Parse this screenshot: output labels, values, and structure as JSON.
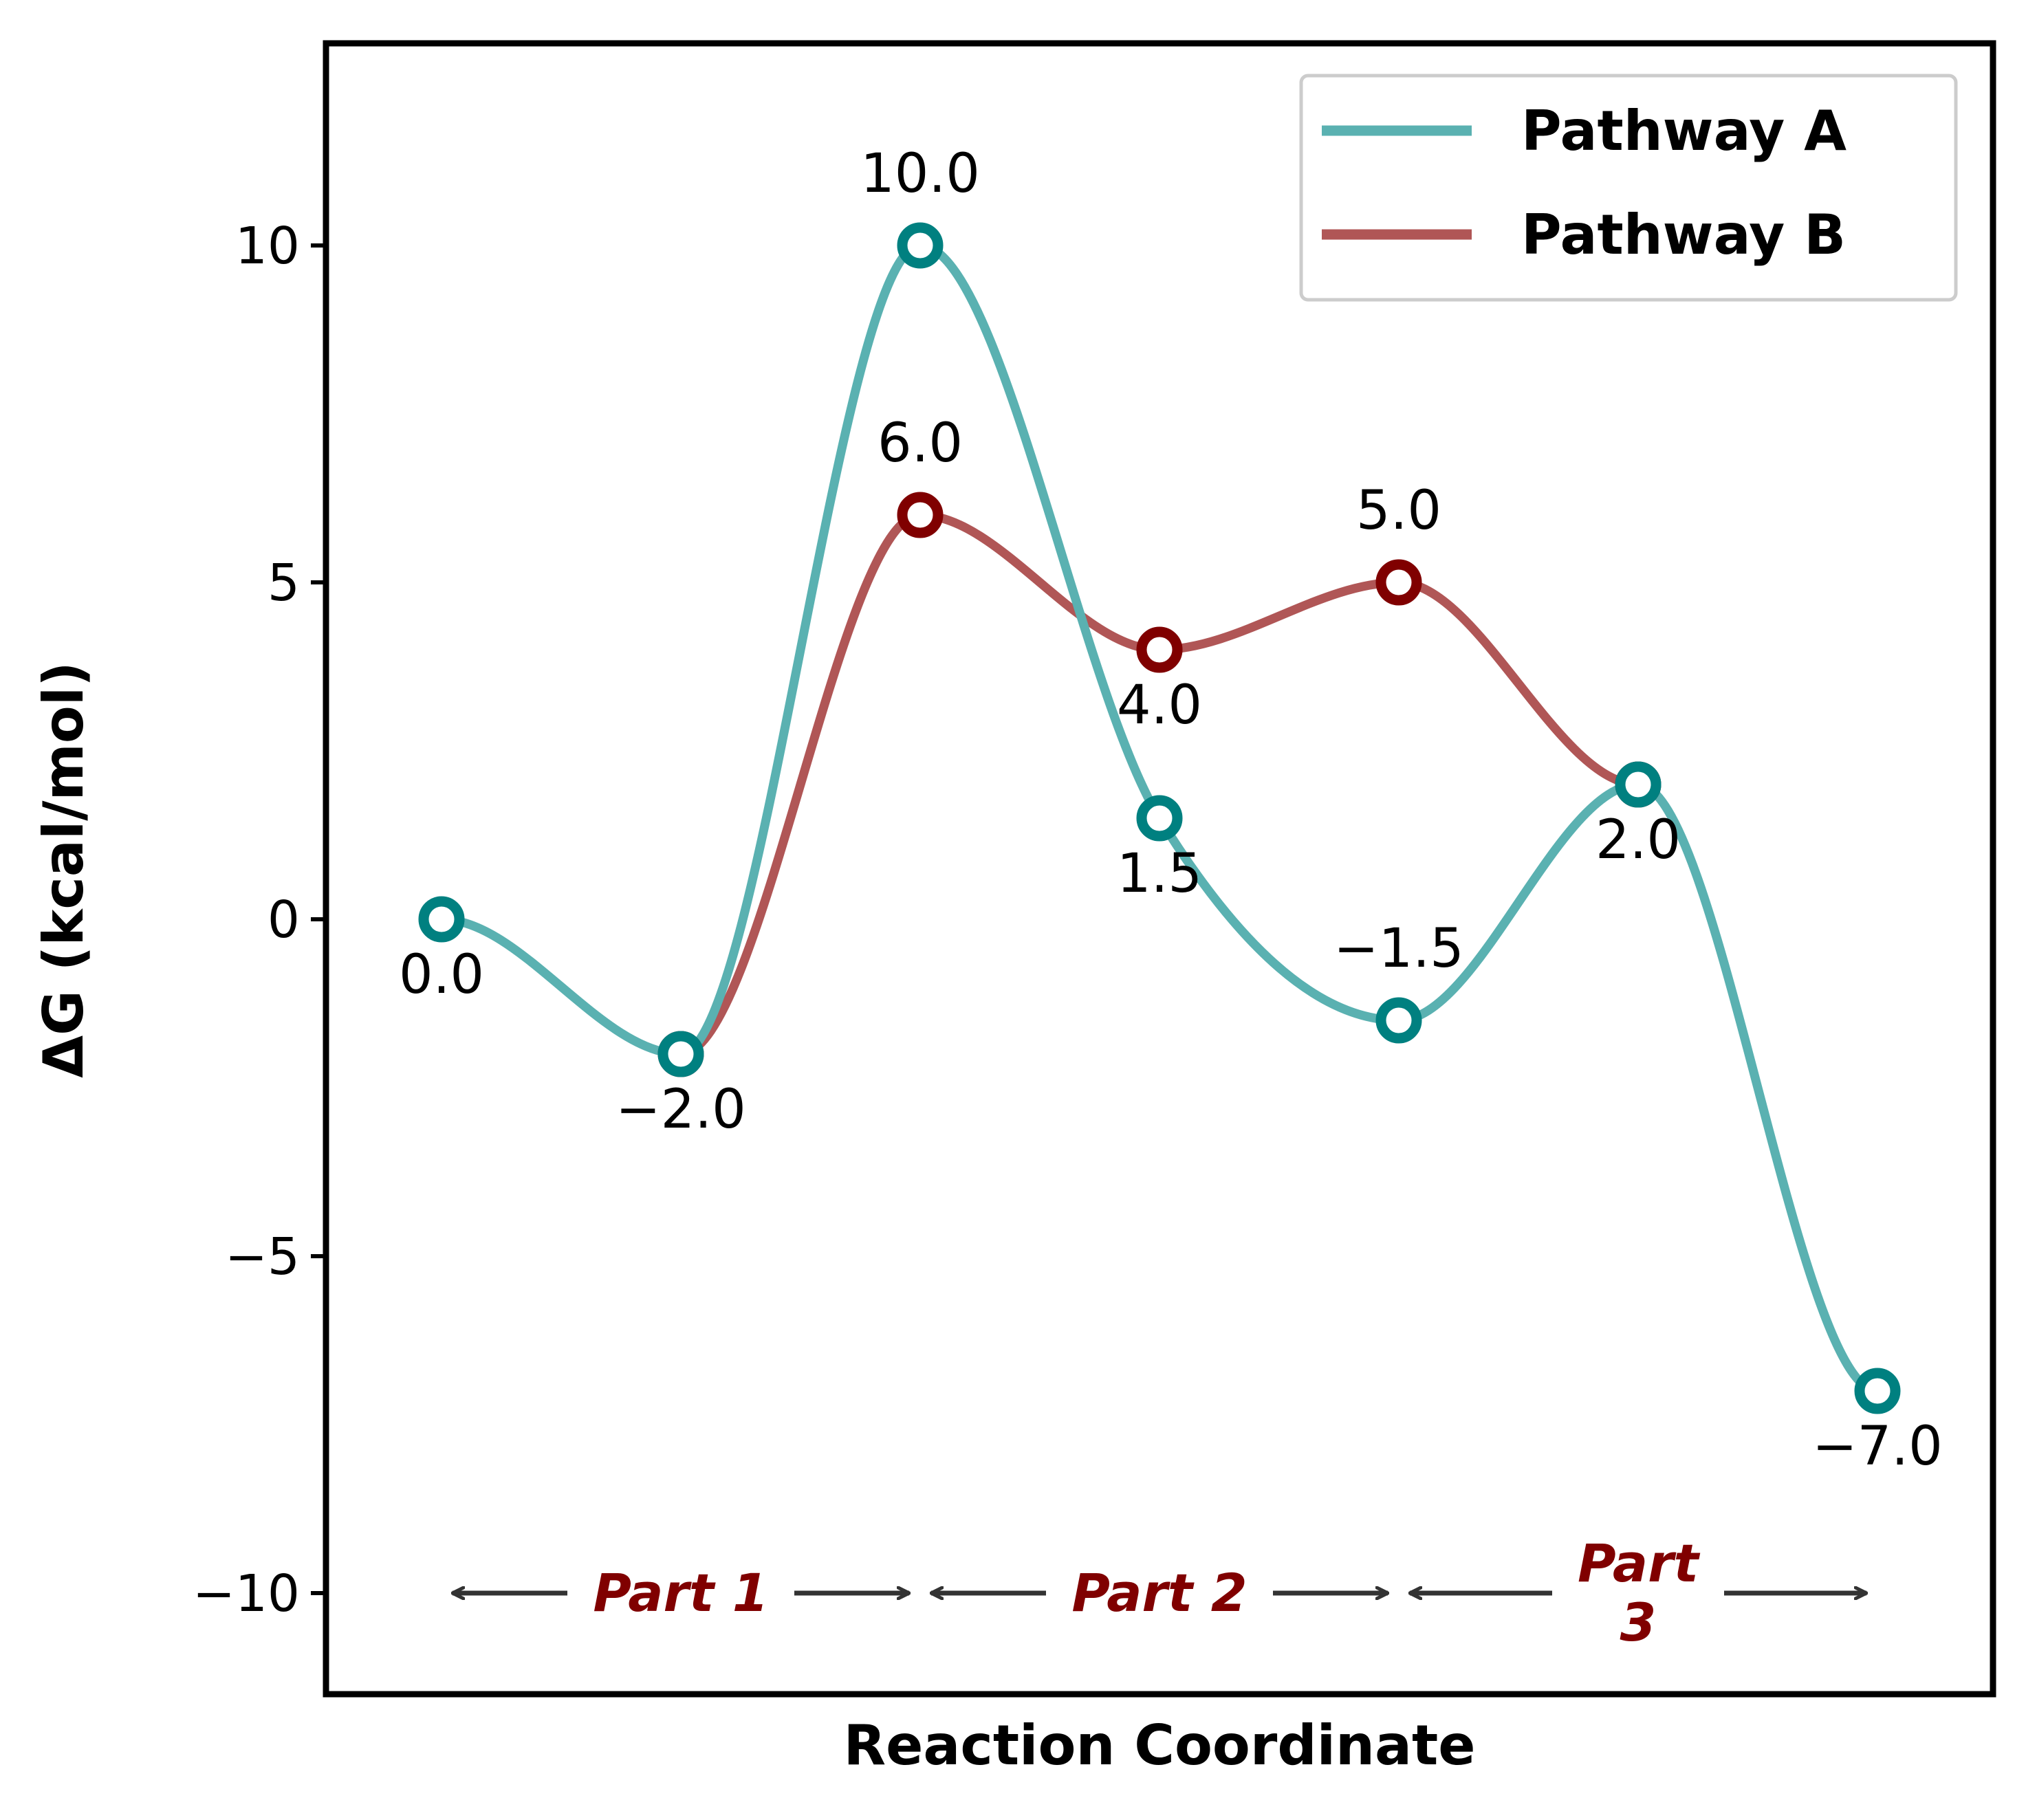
{
  "chart_data": {
    "type": "line",
    "xlabel": "Reaction Coordinate",
    "ylabel": "ΔG (kcal/mol)",
    "ylim": [
      -11.5,
      13.0
    ],
    "yticks": [
      {
        "value": 10,
        "label": "10"
      },
      {
        "value": 5,
        "label": "5"
      },
      {
        "value": 0,
        "label": "0"
      },
      {
        "value": -5,
        "label": "−5"
      },
      {
        "value": -10,
        "label": "−10"
      }
    ],
    "x": [
      0,
      1,
      2,
      3,
      4,
      5,
      6
    ],
    "legend_position": "top-right",
    "series": [
      {
        "name": "Pathway A",
        "x": [
          0,
          1,
          2,
          3,
          4,
          5,
          6
        ],
        "values": [
          0.0,
          -2.0,
          10.0,
          1.5,
          -1.5,
          2.0,
          -7.0
        ],
        "color": "#5ab1b1",
        "marker_color": "#008080"
      },
      {
        "name": "Pathway B",
        "x": [
          1,
          2,
          3,
          4,
          5
        ],
        "values": [
          -2.0,
          6.0,
          4.0,
          5.0,
          2.0
        ],
        "color": "#b05656",
        "marker_color": "#800000"
      }
    ],
    "point_labels": [
      {
        "x": 0,
        "y": 0.0,
        "text": "0.0",
        "pos": "below"
      },
      {
        "x": 1,
        "y": -2.0,
        "text": "−2.0",
        "pos": "below"
      },
      {
        "x": 2,
        "y": 10.0,
        "text": "10.0",
        "pos": "above"
      },
      {
        "x": 3,
        "y": 1.5,
        "text": "1.5",
        "pos": "below"
      },
      {
        "x": 4,
        "y": -1.5,
        "text": "−1.5",
        "pos": "above"
      },
      {
        "x": 5,
        "y": 2.0,
        "text": "2.0",
        "pos": "below"
      },
      {
        "x": 6,
        "y": -7.0,
        "text": "−7.0",
        "pos": "below"
      },
      {
        "x": 2,
        "y": 6.0,
        "text": "6.0",
        "pos": "above"
      },
      {
        "x": 3,
        "y": 4.0,
        "text": "4.0",
        "pos": "below"
      },
      {
        "x": 4,
        "y": 5.0,
        "text": "5.0",
        "pos": "above"
      }
    ],
    "annotations": [
      {
        "lines": [
          "Part 1"
        ],
        "x_start": 0,
        "x_end": 2,
        "y": -10,
        "color": "#800000"
      },
      {
        "lines": [
          "Part 2"
        ],
        "x_start": 2,
        "x_end": 4,
        "y": -10,
        "color": "#800000"
      },
      {
        "lines": [
          "Part",
          "3"
        ],
        "x_start": 4,
        "x_end": 6,
        "y": -10,
        "color": "#800000"
      }
    ],
    "grid": false
  }
}
